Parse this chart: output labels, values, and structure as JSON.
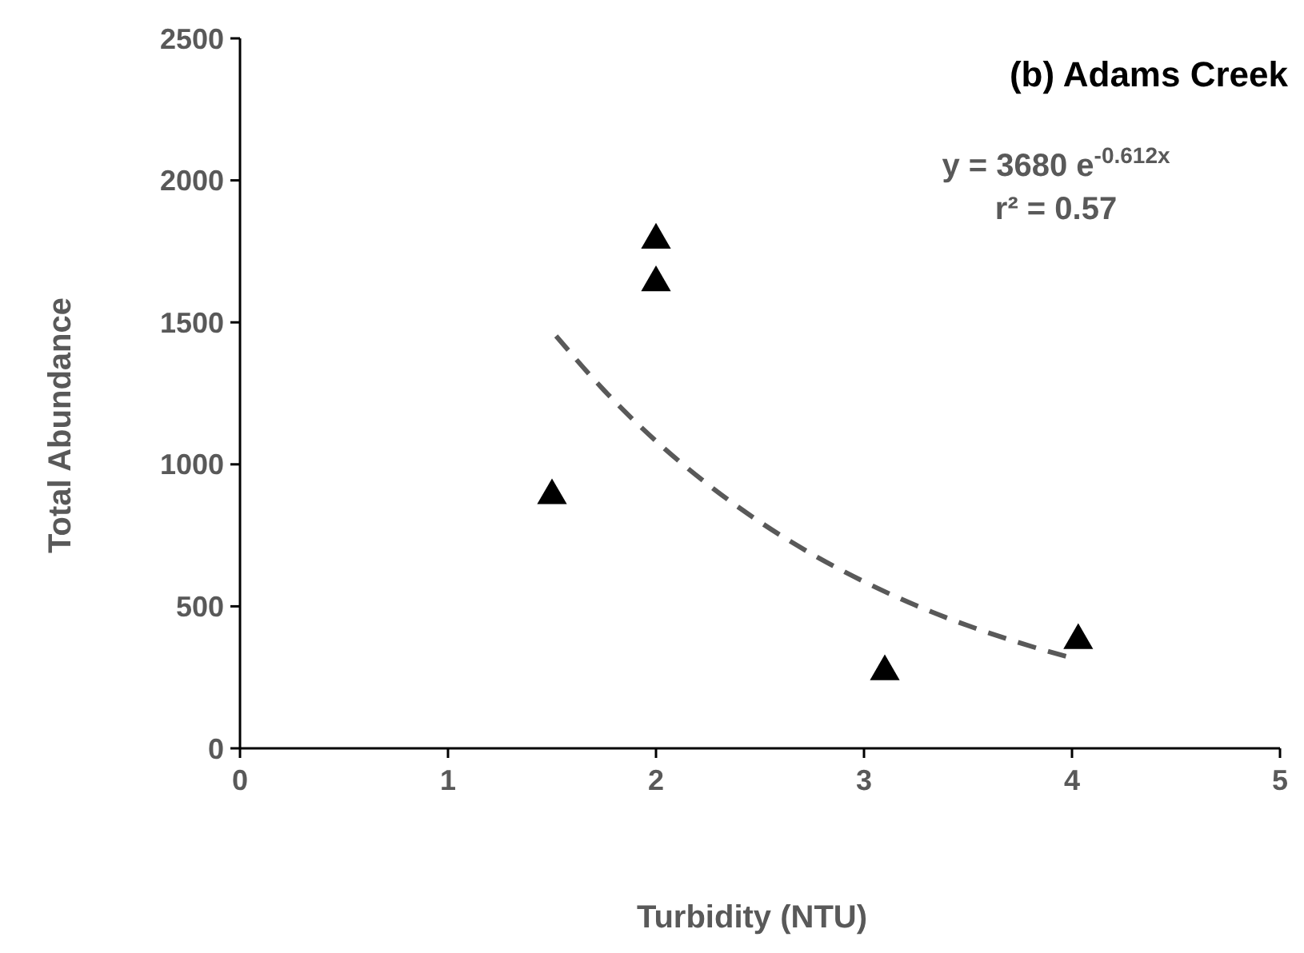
{
  "chart_data": {
    "type": "scatter",
    "title": "(b) Adams Creek",
    "xlabel": "Turbidity (NTU)",
    "ylabel": "Total Abundance",
    "annotations": [
      "y = 3680 e$^{-0.612x}$",
      "r² = 0.57"
    ],
    "xlim": [
      0,
      5
    ],
    "ylim": [
      0,
      2500
    ],
    "xticks": [
      0,
      1,
      2,
      3,
      4,
      5
    ],
    "yticks": [
      0,
      500,
      1000,
      1500,
      2000,
      2500
    ],
    "grid": false,
    "series": [
      {
        "color": "#000000",
        "marker": "triangle",
        "x": [
          1.5,
          2.0,
          2.0,
          3.1,
          4.03
        ],
        "values": [
          890,
          1790,
          1640,
          270,
          380
        ]
      },
      {
        "type": "line",
        "color": "#595959",
        "marker": "none",
        "line_style": "dashed",
        "x": [
          1.5,
          1.75,
          2,
          2.25,
          2.5,
          2.75,
          3,
          3.25,
          3.5,
          3.75,
          4
        ],
        "values": [
          1469,
          1261,
          1082,
          929,
          797,
          684,
          587,
          503,
          432,
          371,
          318
        ]
      }
    ]
  }
}
